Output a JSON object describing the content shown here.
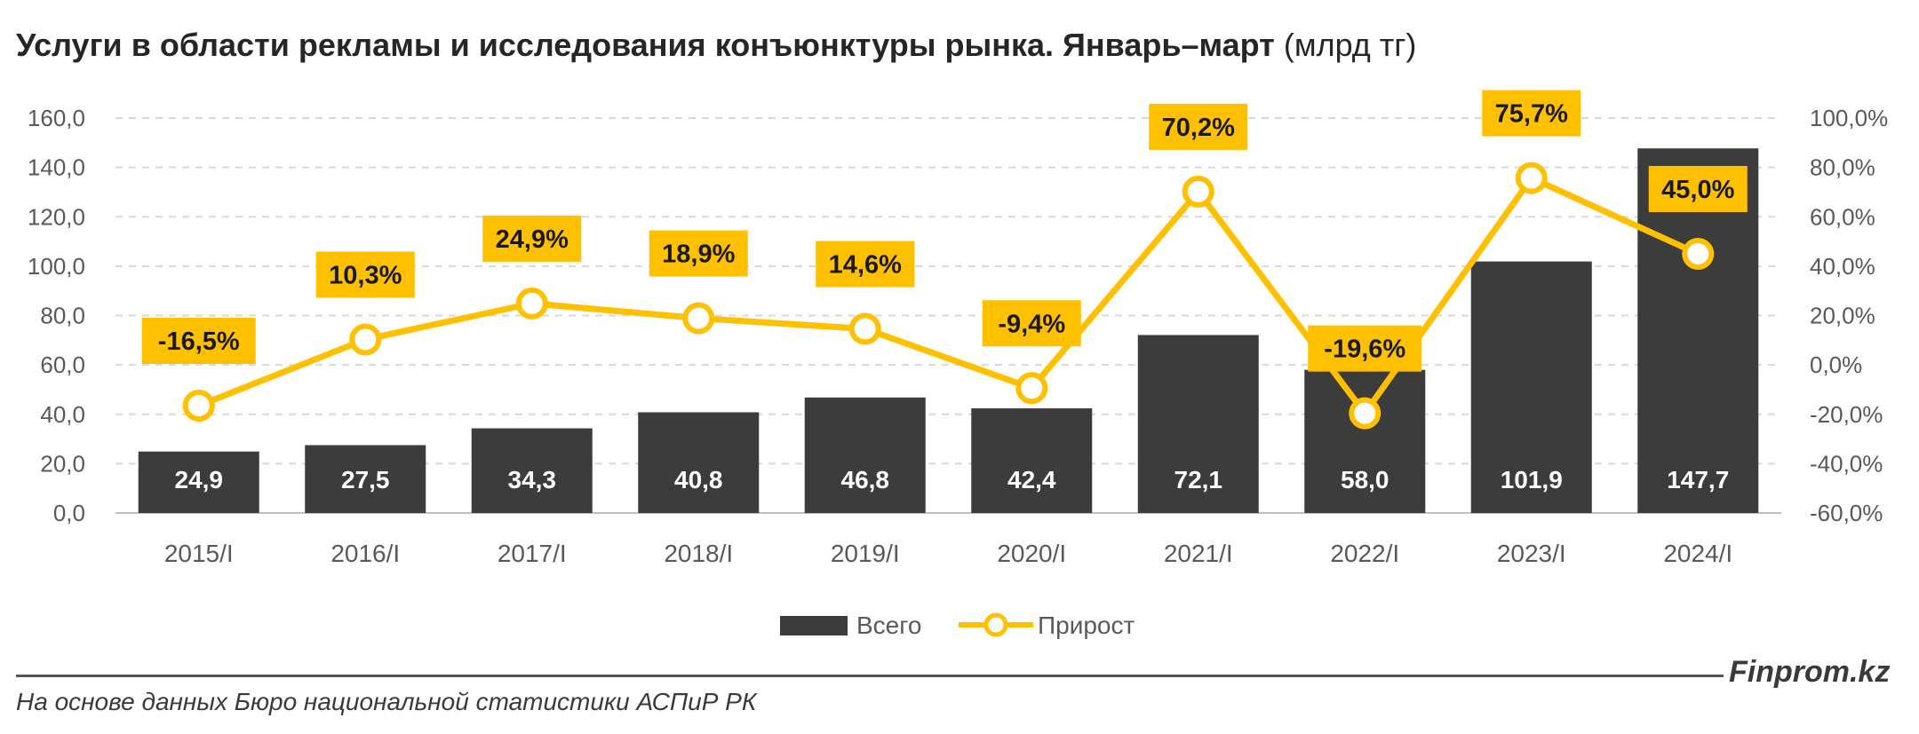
{
  "title": {
    "bold": "Услуги в области рекламы и исследования конъюнктуры рынка. Январь–март",
    "unit": "(млрд тг)"
  },
  "footer": {
    "brand": "Finprom.kz",
    "source": "На основе данных Бюро национальной статистики АСПиР РК"
  },
  "colors": {
    "bar": "#3c3c3c",
    "line": "#ffc000",
    "label_bg": "#ffc000",
    "grid": "#d9d9d9",
    "text": "#595959"
  },
  "chart_data": {
    "type": "bar",
    "categories": [
      "2015/I",
      "2016/I",
      "2017/I",
      "2018/I",
      "2019/I",
      "2020/I",
      "2021/I",
      "2022/I",
      "2023/I",
      "2024/I"
    ],
    "series": [
      {
        "name": "Всего",
        "type": "bar",
        "axis": "left",
        "values": [
          24.9,
          27.5,
          34.3,
          40.8,
          46.8,
          42.4,
          72.1,
          58.0,
          101.9,
          147.7
        ],
        "labels": [
          "24,9",
          "27,5",
          "34,3",
          "40,8",
          "46,8",
          "42,4",
          "72,1",
          "58,0",
          "101,9",
          "147,7"
        ]
      },
      {
        "name": "Прирост",
        "type": "line",
        "axis": "right",
        "values": [
          -16.5,
          10.3,
          24.9,
          18.9,
          14.6,
          -9.4,
          70.2,
          -19.6,
          75.7,
          45.0
        ],
        "labels": [
          "-16,5%",
          "10,3%",
          "24,9%",
          "18,9%",
          "14,6%",
          "-9,4%",
          "70,2%",
          "-19,6%",
          "75,7%",
          "45,0%"
        ]
      }
    ],
    "y_left": {
      "ylim": [
        0,
        160
      ],
      "ticks": [
        "0,0",
        "20,0",
        "40,0",
        "60,0",
        "80,0",
        "100,0",
        "120,0",
        "140,0",
        "160,0"
      ]
    },
    "y_right": {
      "ylim": [
        -60,
        100
      ],
      "ticks": [
        "-60,0%",
        "-40,0%",
        "-20,0%",
        "0,0%",
        "20,0%",
        "40,0%",
        "60,0%",
        "80,0%",
        "100,0%"
      ]
    },
    "grid": true,
    "legend": "bottom-center"
  }
}
